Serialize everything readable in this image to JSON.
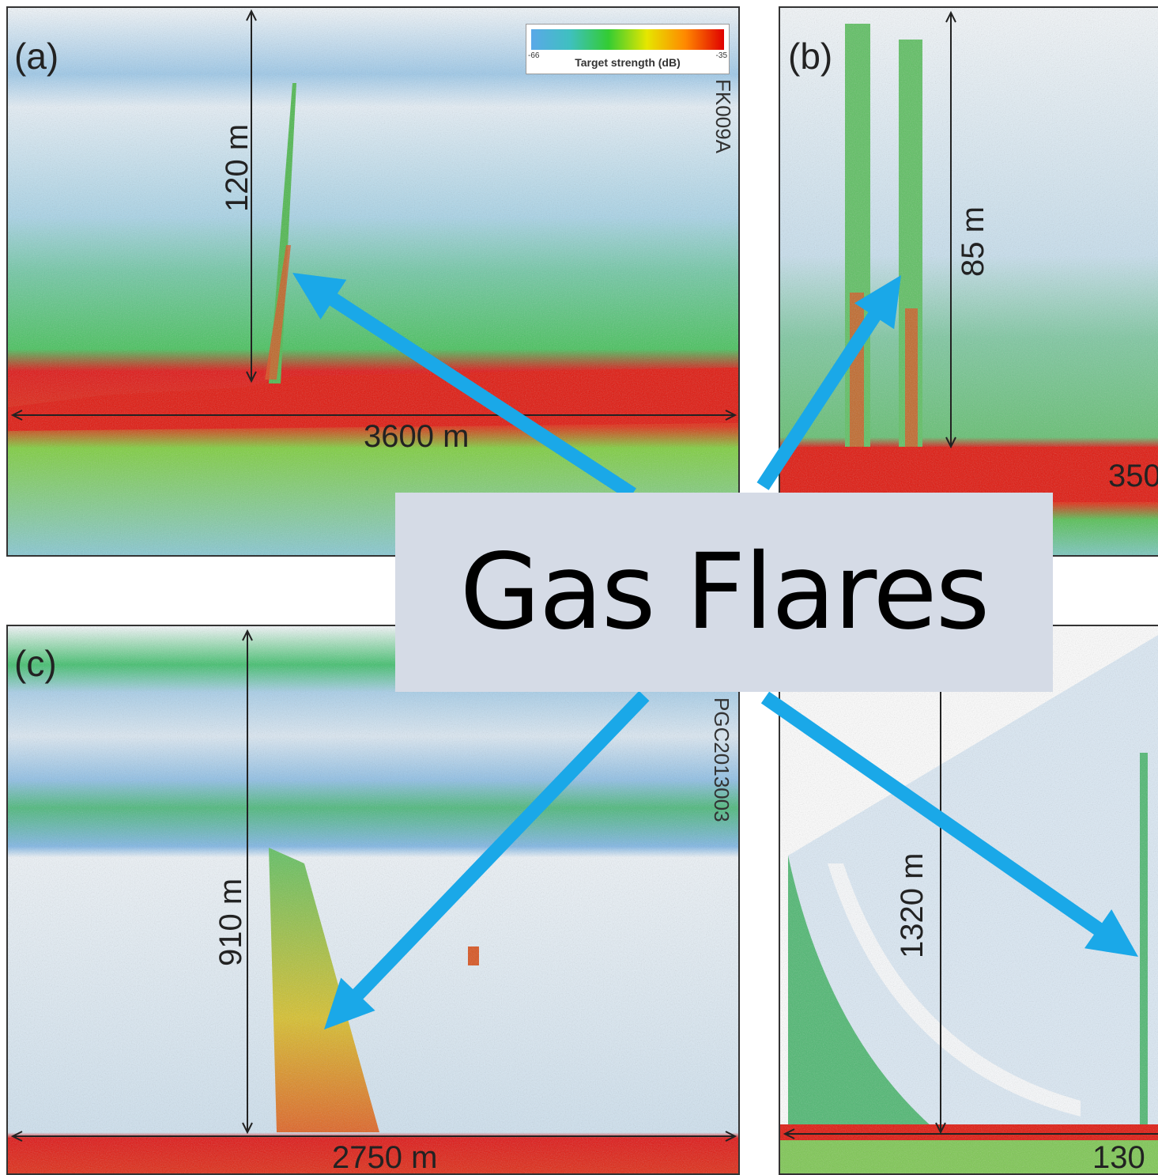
{
  "caption": "Gas Flares",
  "legend": {
    "title": "Target strength (dB)",
    "min": "-66",
    "max": "-35",
    "colors": [
      "#5aa8e8",
      "#3fc0c0",
      "#33cc33",
      "#e6e600",
      "#ff8800",
      "#e00000"
    ]
  },
  "panels": {
    "a": {
      "label": "(a)",
      "depth": "120 m",
      "width": "3600 m",
      "code": "FK009A"
    },
    "b": {
      "label": "(b)",
      "depth": "85 m",
      "width": "350"
    },
    "c": {
      "label": "(c)",
      "depth": "910 m",
      "width": "2750 m",
      "code": "PGC2013003"
    },
    "d": {
      "depth": "1320 m",
      "width": "130"
    }
  },
  "arrow_color": "#1aa8e8"
}
